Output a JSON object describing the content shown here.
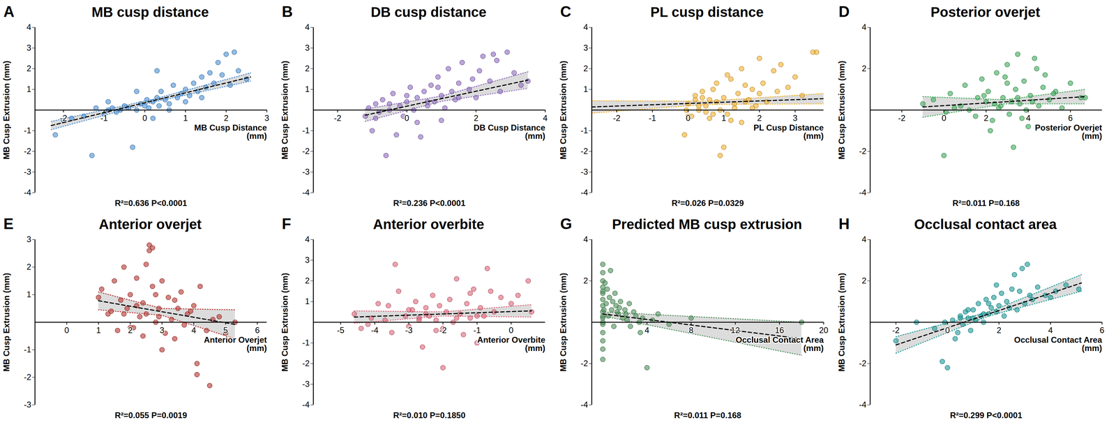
{
  "chart_data": [
    {
      "type": "scatter",
      "panel": "A",
      "title": "MB cusp distance",
      "xlabel": "MB Cusp Distance (mm)",
      "ylabel": "MB Cusp Extrusion (mm)",
      "color": "#4a8fd4",
      "xlim": [
        -2.7,
        3
      ],
      "xticks": [
        -2,
        -1,
        0,
        1,
        2,
        3
      ],
      "ylim": [
        -4,
        4
      ],
      "yticks": [
        -4,
        -3,
        -2,
        -1,
        1,
        2,
        3,
        4
      ],
      "x": [
        -2.2,
        -2.0,
        -1.8,
        -1.5,
        -1.3,
        -1.2,
        -1.0,
        -0.9,
        -0.8,
        -0.7,
        -0.6,
        -0.5,
        -0.4,
        -0.3,
        -0.2,
        -0.1,
        0.0,
        0.05,
        0.1,
        0.2,
        0.3,
        0.35,
        0.4,
        0.5,
        0.6,
        0.7,
        0.8,
        0.9,
        1.0,
        1.1,
        1.2,
        1.3,
        1.4,
        1.5,
        1.6,
        1.7,
        1.8,
        1.9,
        2.0,
        2.1,
        2.2,
        2.3,
        2.5,
        -0.9,
        0.2,
        0.6,
        -0.2,
        1.0,
        1.4,
        0.3
      ],
      "values": [
        -1.2,
        -0.5,
        -0.4,
        -0.3,
        -2.2,
        0.1,
        -0.2,
        0.0,
        0.1,
        -0.1,
        0.0,
        0.2,
        0.1,
        -1.8,
        0.0,
        0.3,
        0.2,
        0.5,
        0.1,
        0.4,
        0.6,
        0.2,
        0.9,
        0.5,
        0.3,
        1.2,
        0.6,
        0.8,
        1.0,
        0.7,
        1.3,
        0.9,
        1.6,
        1.1,
        1.8,
        1.3,
        2.3,
        1.7,
        2.7,
        1.2,
        2.8,
        1.9,
        1.5,
        0.4,
        -0.4,
        0.0,
        0.9,
        0.4,
        0.6,
        1.9
      ],
      "fit": {
        "x": [
          -2.3,
          0.2,
          2.6
        ],
        "y": [
          -0.75,
          0.45,
          1.6
        ],
        "lower": [
          -0.95,
          0.38,
          1.4
        ],
        "upper": [
          -0.55,
          0.52,
          1.8
        ]
      },
      "annotations": [
        "R²=0.636 P<0.0001"
      ]
    },
    {
      "type": "scatter",
      "panel": "B",
      "title": "DB cusp distance",
      "xlabel": "DB Cusp Distance (mm)",
      "ylabel": "MB Cusp Extrusion (mm)",
      "color": "#8e6bbf",
      "xlim": [
        -2.7,
        4
      ],
      "xticks": [
        -2,
        0,
        2,
        4
      ],
      "ylim": [
        -4,
        4
      ],
      "yticks": [
        -4,
        -3,
        -2,
        -1,
        1,
        2,
        3,
        4
      ],
      "x": [
        -1.2,
        -1.1,
        -1.0,
        -0.9,
        -0.8,
        -0.7,
        -0.6,
        -0.5,
        -0.4,
        -0.3,
        -0.2,
        -0.1,
        0.0,
        0.1,
        0.2,
        0.3,
        0.4,
        0.5,
        0.6,
        0.7,
        0.8,
        0.9,
        1.0,
        1.1,
        1.2,
        1.3,
        1.4,
        1.5,
        1.6,
        1.8,
        2.0,
        2.2,
        2.4,
        2.5,
        2.7,
        2.9,
        3.1,
        3.3,
        3.5,
        1.0,
        -0.5,
        0.3,
        0.9,
        1.5,
        2.1,
        -0.9,
        0.0,
        0.6,
        1.9,
        2.6
      ],
      "values": [
        -0.3,
        0.1,
        -1.0,
        0.3,
        -0.1,
        0.5,
        -2.2,
        0.0,
        0.8,
        -1.2,
        0.2,
        -0.3,
        0.4,
        1.1,
        0.0,
        0.6,
        -1.3,
        0.9,
        0.2,
        1.2,
        0.4,
        1.6,
        0.7,
        0.1,
        2.0,
        0.9,
        0.5,
        1.3,
        2.3,
        1.0,
        0.6,
        2.6,
        1.4,
        2.7,
        0.9,
        2.8,
        1.8,
        1.2,
        1.4,
        -0.5,
        0.3,
        -0.6,
        1.1,
        0.6,
        1.9,
        -0.4,
        0.7,
        0.4,
        1.5,
        2.4
      ],
      "fit": {
        "x": [
          -1.2,
          1.0,
          3.5
        ],
        "y": [
          -0.25,
          0.55,
          1.45
        ],
        "lower": [
          -0.55,
          0.42,
          1.05
        ],
        "upper": [
          0.05,
          0.68,
          1.85
        ]
      },
      "annotations": [
        "R²=0.236 P<0.0001"
      ]
    },
    {
      "type": "scatter",
      "panel": "C",
      "title": "PL cusp distance",
      "xlabel": "PL Cusp Distance (mm)",
      "ylabel": "MB Cusp Extrusion (mm)",
      "color": "#f2b12e",
      "xlim": [
        -2.7,
        3.8
      ],
      "xticks": [
        -2,
        -1,
        0,
        1,
        2,
        3
      ],
      "ylim": [
        -4,
        4
      ],
      "yticks": [
        -4,
        -3,
        -2,
        -1,
        1,
        2,
        3,
        4
      ],
      "x": [
        -0.1,
        0.0,
        0.1,
        0.2,
        0.3,
        0.4,
        0.5,
        0.6,
        0.7,
        0.8,
        0.9,
        1.0,
        1.1,
        1.2,
        1.3,
        1.4,
        1.5,
        1.6,
        1.7,
        1.8,
        1.9,
        2.0,
        2.1,
        2.2,
        2.4,
        2.6,
        2.8,
        3.0,
        3.2,
        3.6,
        0.2,
        0.5,
        0.8,
        1.0,
        1.3,
        0.9,
        1.5,
        0.4,
        0.7,
        1.1,
        3.5,
        2.5,
        0.0,
        1.8,
        0.6,
        1.2,
        2.0,
        0.3,
        1.6,
        -0.05
      ],
      "values": [
        -1.2,
        0.3,
        -0.3,
        0.5,
        0.0,
        0.9,
        0.2,
        -0.4,
        1.0,
        0.4,
        -2.2,
        0.6,
        -0.2,
        1.5,
        0.3,
        0.8,
        -0.6,
        1.2,
        0.5,
        1.0,
        0.2,
        2.5,
        1.3,
        0.4,
        1.9,
        2.2,
        1.1,
        1.6,
        0.7,
        2.8,
        0.7,
        -0.1,
        1.3,
        -1.8,
        0.1,
        0.0,
        2.0,
        0.6,
        -0.2,
        1.7,
        2.8,
        0.9,
        -0.3,
        0.1,
        0.5,
        -0.5,
        0.8,
        0.2,
        0.4,
        0.0
      ],
      "fit": {
        "x": [
          -2.7,
          0.5,
          3.8
        ],
        "y": [
          0.15,
          0.35,
          0.55
        ],
        "lower": [
          -0.15,
          0.27,
          0.3
        ],
        "upper": [
          0.45,
          0.43,
          0.8
        ]
      },
      "annotations": [
        "R²=0.026 P=0.0329"
      ]
    },
    {
      "type": "scatter",
      "panel": "D",
      "title": "Posterior overjet",
      "xlabel": "Posterior Overjet (mm)",
      "ylabel": "MB Cusp Extrusion (mm)",
      "color": "#3daa5a",
      "xlim": [
        -3.5,
        7.5
      ],
      "xticks": [
        -2,
        0,
        2,
        4,
        6
      ],
      "ylim": [
        -4,
        4
      ],
      "yticks": [
        -4,
        -2,
        2,
        4
      ],
      "x": [
        -1.0,
        -0.5,
        0.0,
        0.3,
        0.8,
        1.0,
        1.2,
        1.5,
        1.8,
        2.0,
        2.1,
        2.3,
        2.5,
        2.6,
        2.8,
        3.0,
        3.1,
        3.2,
        3.4,
        3.5,
        3.6,
        3.8,
        4.0,
        4.1,
        4.3,
        4.5,
        4.7,
        5.0,
        5.3,
        5.6,
        6.0,
        6.5,
        2.2,
        2.9,
        3.3,
        3.9,
        1.6,
        4.8,
        2.7,
        3.7,
        0.5,
        1.9,
        2.4,
        3.0,
        3.5,
        4.2,
        4.4,
        5.2,
        0.1,
        6.7
      ],
      "values": [
        0.3,
        0.5,
        -2.2,
        0.8,
        0.2,
        1.2,
        0.0,
        -0.3,
        1.5,
        0.4,
        0.9,
        -0.5,
        1.8,
        0.1,
        0.6,
        2.2,
        -0.2,
        0.4,
        1.0,
        2.7,
        0.3,
        1.4,
        -0.8,
        0.7,
        2.5,
        0.2,
        1.1,
        0.5,
        0.9,
        0.1,
        1.3,
        0.6,
        -1.0,
        1.6,
        -1.8,
        0.0,
        0.6,
        1.7,
        0.2,
        -0.4,
        0.1,
        0.7,
        0.3,
        1.3,
        0.6,
        0.4,
        2.0,
        0.8,
        -0.1,
        0.6
      ],
      "fit": {
        "x": [
          -1.0,
          2.9,
          6.7
        ],
        "y": [
          0.15,
          0.4,
          0.65
        ],
        "lower": [
          -0.35,
          0.3,
          0.3
        ],
        "upper": [
          0.65,
          0.5,
          1.0
        ]
      },
      "annotations": [
        "R²=0.011 P=0.168"
      ]
    },
    {
      "type": "scatter",
      "panel": "E",
      "title": "Anterior overjet",
      "xlabel": "Anterior Overjet (mm)",
      "ylabel": "MB Cusp Extrusion (mm)",
      "color": "#b5332e",
      "xlim": [
        -1,
        6.3
      ],
      "xticks": [
        0,
        1,
        2,
        3,
        4,
        5,
        6
      ],
      "ylim": [
        -3,
        3
      ],
      "yticks": [
        -3,
        -2,
        -1,
        1,
        2,
        3
      ],
      "x": [
        1.0,
        1.1,
        1.3,
        1.5,
        1.6,
        1.7,
        1.8,
        1.9,
        2.0,
        2.1,
        2.2,
        2.3,
        2.4,
        2.5,
        2.6,
        2.7,
        2.8,
        2.9,
        3.0,
        3.1,
        3.2,
        3.3,
        3.4,
        3.5,
        3.6,
        3.7,
        3.8,
        4.0,
        4.1,
        4.2,
        4.5,
        4.8,
        5.0,
        5.3,
        2.6,
        2.7,
        2.0,
        3.0,
        2.5,
        4.1,
        1.4,
        2.2,
        2.9,
        3.4,
        1.8,
        2.4,
        3.9,
        2.8,
        4.4,
        4.6
      ],
      "values": [
        0.9,
        1.2,
        0.3,
        1.5,
        -0.3,
        0.8,
        2.0,
        0.5,
        1.0,
        -0.2,
        1.6,
        0.2,
        0.7,
        2.1,
        2.8,
        1.3,
        0.0,
        0.5,
        1.5,
        -0.4,
        0.9,
        0.1,
        -0.6,
        0.5,
        1.1,
        -0.1,
        0.3,
        0.6,
        -1.5,
        1.3,
        -2.3,
        0.2,
        -0.4,
        0.0,
        2.6,
        2.7,
        -0.2,
        -1.0,
        0.3,
        -1.9,
        0.4,
        0.6,
        0.2,
        0.8,
        0.3,
        -0.5,
        0.4,
        1.0,
        -0.3,
        0.1
      ],
      "fit": {
        "x": [
          1.0,
          3.0,
          5.3
        ],
        "y": [
          0.78,
          0.38,
          -0.08
        ],
        "lower": [
          0.45,
          0.25,
          -0.6
        ],
        "upper": [
          1.1,
          0.5,
          0.45
        ]
      },
      "annotations": [
        "R²=0.055 P=0.0019"
      ]
    },
    {
      "type": "scatter",
      "panel": "F",
      "title": "Anterior overbite",
      "xlabel": "Anterior Overbite (mm)",
      "ylabel": "MB Cusp Extrusion (mm)",
      "color": "#e0667a",
      "xlim": [
        -5.8,
        1
      ],
      "xticks": [
        -5,
        -4,
        -3,
        -2,
        -1,
        0
      ],
      "ylim": [
        -4,
        4
      ],
      "yticks": [
        -4,
        -3,
        -2,
        -1,
        1,
        2,
        3,
        4
      ],
      "x": [
        -4.6,
        -4.4,
        -4.1,
        -3.9,
        -3.7,
        -3.5,
        -3.3,
        -3.1,
        -3.0,
        -2.9,
        -2.8,
        -2.7,
        -2.6,
        -2.5,
        -2.4,
        -2.3,
        -2.2,
        -2.1,
        -2.0,
        -1.9,
        -1.8,
        -1.7,
        -1.6,
        -1.5,
        -1.4,
        -1.3,
        -1.2,
        -1.1,
        -1.0,
        -0.9,
        -0.8,
        -0.7,
        -0.5,
        -0.3,
        0.0,
        0.2,
        0.5,
        -3.4,
        -2.0,
        -1.2,
        -4.2,
        -3.0,
        -2.5,
        -1.6,
        -0.6,
        -3.6,
        -2.2,
        -1.0,
        0.6,
        -2.7
      ],
      "values": [
        0.4,
        -0.3,
        0.2,
        0.9,
        0.1,
        -0.5,
        1.5,
        0.3,
        -0.2,
        0.6,
        1.0,
        0.2,
        -1.2,
        0.7,
        0.3,
        1.3,
        0.1,
        0.8,
        -0.3,
        0.5,
        1.1,
        0.0,
        2.1,
        0.4,
        -0.6,
        0.9,
        0.2,
        1.6,
        -1.0,
        0.7,
        0.3,
        2.6,
        0.5,
        1.2,
        0.9,
        1.3,
        2.0,
        2.8,
        -2.2,
        1.4,
        -0.1,
        0.6,
        0.4,
        0.2,
        1.5,
        0.8,
        -0.4,
        0.3,
        0.5,
        0.1
      ],
      "fit": {
        "x": [
          -4.6,
          -2.0,
          0.6
        ],
        "y": [
          0.25,
          0.4,
          0.55
        ],
        "lower": [
          -0.05,
          0.3,
          0.25
        ],
        "upper": [
          0.55,
          0.5,
          0.85
        ]
      },
      "annotations": [
        "R²=0.010 P=0.1850"
      ]
    },
    {
      "type": "scatter",
      "panel": "G",
      "title": "Predicted MB cusp extrusion",
      "xlabel": "Occlusal Contact Area (mm)",
      "ylabel": "MB Cusp Extrusion (mm)",
      "color": "#4d8f5a",
      "xlim": [
        -1,
        20
      ],
      "xticks": [
        4,
        8,
        12,
        16,
        20
      ],
      "ylim": [
        -4,
        4
      ],
      "yticks": [
        -4,
        -2,
        2,
        4
      ],
      "x": [
        0,
        0,
        0,
        0,
        0,
        0,
        0,
        0,
        0,
        0,
        0,
        0,
        0,
        0,
        0,
        0.3,
        0.5,
        0.6,
        0.8,
        1.0,
        1.2,
        1.4,
        1.6,
        1.8,
        2.0,
        2.2,
        2.5,
        2.8,
        3.0,
        3.3,
        3.6,
        4.0,
        4.5,
        5.0,
        1.1,
        1.5,
        0.7,
        2.4,
        0.4,
        3.4,
        0.9,
        1.3,
        0.2,
        2.1,
        0.1,
        0.0,
        0.0,
        8.0,
        18.0,
        6.0
      ],
      "values": [
        2.8,
        2.4,
        2.0,
        1.7,
        1.4,
        1.1,
        0.8,
        0.5,
        0.2,
        -0.1,
        -0.5,
        -0.9,
        -1.3,
        -1.8,
        0.0,
        0.9,
        0.3,
        1.2,
        0.6,
        -0.2,
        0.8,
        0.4,
        1.0,
        0.2,
        0.6,
        0.1,
        -0.2,
        0.5,
        0.3,
        0.0,
        0.2,
        -2.2,
        0.1,
        0.4,
        1.4,
        0.7,
        2.5,
        0.9,
        1.6,
        -0.5,
        1.0,
        0.5,
        1.9,
        0.4,
        0.6,
        1.5,
        0.3,
        0.2,
        0.0,
        -0.1
      ],
      "fit": {
        "x": [
          0,
          9,
          18
        ],
        "y": [
          0.4,
          -0.2,
          -0.8
        ],
        "lower": [
          0.3,
          -0.65,
          -1.6
        ],
        "upper": [
          0.5,
          0.25,
          0.0
        ]
      },
      "annotations": [
        "R²=0.011 P=0.168"
      ]
    },
    {
      "type": "scatter",
      "panel": "H",
      "title": "Occlusal contact area",
      "xlabel": "Occlusal Contact Area (mm)",
      "ylabel": "MB Cusp Extrusion (mm)",
      "color": "#1a9a9a",
      "xlim": [
        -3,
        6
      ],
      "xticks": [
        -2,
        0,
        2,
        4,
        6
      ],
      "ylim": [
        -4,
        4
      ],
      "yticks": [
        -4,
        -2,
        2,
        4
      ],
      "x": [
        -2.0,
        -1.2,
        -0.5,
        -0.2,
        0.0,
        0.2,
        0.4,
        0.5,
        0.6,
        0.7,
        0.8,
        0.9,
        1.0,
        1.1,
        1.2,
        1.3,
        1.4,
        1.5,
        1.6,
        1.7,
        1.8,
        1.9,
        2.0,
        2.1,
        2.2,
        2.3,
        2.5,
        2.7,
        2.9,
        3.1,
        3.3,
        3.5,
        3.8,
        4.2,
        4.6,
        5.1,
        0.3,
        1.0,
        1.6,
        2.6,
        2.8,
        3.0,
        -0.1,
        0.8,
        1.4,
        2.4,
        0.5,
        1.9,
        3.2,
        4.0
      ],
      "values": [
        -0.9,
        0.0,
        -0.3,
        -1.9,
        -2.2,
        0.1,
        -0.5,
        0.3,
        -0.1,
        0.5,
        0.2,
        -0.4,
        0.6,
        0.1,
        0.9,
        0.3,
        0.0,
        1.1,
        0.4,
        0.7,
        1.2,
        0.5,
        0.8,
        1.4,
        0.3,
        1.0,
        1.6,
        0.6,
        2.6,
        2.8,
        1.1,
        1.7,
        1.3,
        1.5,
        1.8,
        1.6,
        -0.8,
        0.2,
        0.9,
        2.3,
        1.5,
        0.9,
        0.0,
        0.6,
        0.4,
        0.7,
        0.2,
        1.8,
        1.3,
        1.2
      ],
      "fit": {
        "x": [
          -2,
          1.6,
          5.2
        ],
        "y": [
          -1.1,
          0.4,
          1.9
        ],
        "lower": [
          -1.5,
          0.3,
          1.5
        ],
        "upper": [
          -0.7,
          0.5,
          2.3
        ]
      },
      "annotations": [
        "R²=0.299 P<0.0001"
      ]
    }
  ]
}
